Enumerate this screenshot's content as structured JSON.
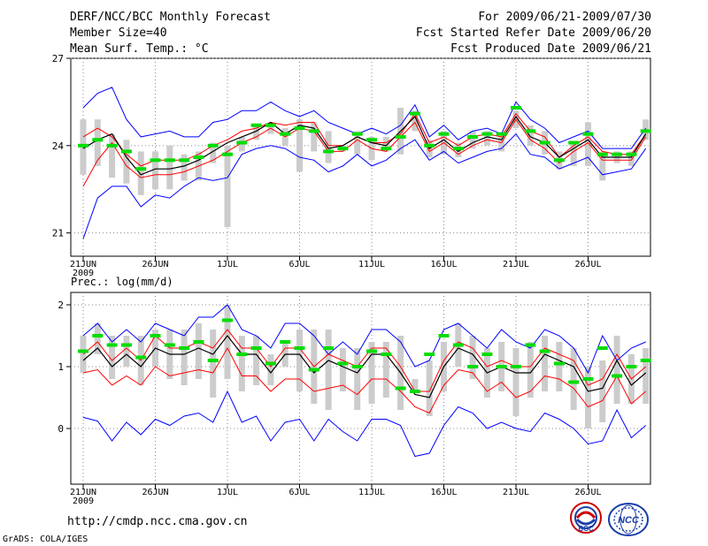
{
  "header": {
    "left1": "DERF/NCC/BCC Monthly Forecast",
    "left2": "Member Size=40",
    "left3": "Mean Surf. Temp.: °C",
    "right1": "For 2009/06/21-2009/07/30",
    "right2": "Fcst Started Refer Date 2009/06/20",
    "right3": "Fcst Produced Date 2009/06/21"
  },
  "footer": {
    "url": "http://cmdp.ncc.cma.gov.cn",
    "grads": "GrADS: COLA/IGES",
    "logo_bcc": "BCC",
    "logo_ncc": "NCC"
  },
  "colors": {
    "envelope": "#0000ff",
    "spread": "#ff0000",
    "mean": "#000000",
    "obs": "#00dd00",
    "box": "#cccccc"
  },
  "chart_data": [
    {
      "type": "line",
      "title": "Mean Surf. Temp.: °C",
      "x_tick_labels": [
        "21JUN",
        "26JUN",
        "1JUL",
        "6JUL",
        "11JUL",
        "16JUL",
        "21JUL",
        "26JUL"
      ],
      "x_year_label": "2009",
      "y_ticks": [
        21,
        24,
        27
      ],
      "ylim": [
        20.2,
        27
      ],
      "days": 40,
      "series": [
        {
          "name": "max",
          "values": [
            25.3,
            25.8,
            26.0,
            24.9,
            24.3,
            24.4,
            24.5,
            24.3,
            24.3,
            24.8,
            24.9,
            25.2,
            25.2,
            25.5,
            25.2,
            25.0,
            25.2,
            24.8,
            24.6,
            24.4,
            24.6,
            24.4,
            24.7,
            25.4,
            24.3,
            24.7,
            24.2,
            24.5,
            24.6,
            24.4,
            25.5,
            24.9,
            24.6,
            24.1,
            24.3,
            24.5,
            23.9,
            23.9,
            23.9,
            24.6
          ]
        },
        {
          "name": "p90",
          "values": [
            24.3,
            24.6,
            24.3,
            23.7,
            23.3,
            23.5,
            23.5,
            23.5,
            23.7,
            24.0,
            24.2,
            24.5,
            24.6,
            24.8,
            24.7,
            24.8,
            24.8,
            24.0,
            24.0,
            24.3,
            24.1,
            24.1,
            24.4,
            25.1,
            24.1,
            24.3,
            24.0,
            24.3,
            24.4,
            24.3,
            25.1,
            24.5,
            24.3,
            23.6,
            24.0,
            24.3,
            23.8,
            23.7,
            23.7,
            24.4
          ]
        },
        {
          "name": "mean",
          "values": [
            23.9,
            24.2,
            24.4,
            23.6,
            23.0,
            23.2,
            23.2,
            23.3,
            23.5,
            23.8,
            24.1,
            24.3,
            24.5,
            24.8,
            24.4,
            24.7,
            24.6,
            23.9,
            24.0,
            24.3,
            24.1,
            24.0,
            24.5,
            25.0,
            23.9,
            24.2,
            23.8,
            24.1,
            24.3,
            24.2,
            25.0,
            24.3,
            24.1,
            23.6,
            23.9,
            24.2,
            23.6,
            23.6,
            23.6,
            24.4
          ]
        },
        {
          "name": "p10",
          "values": [
            22.6,
            23.5,
            24.1,
            23.3,
            22.9,
            23.0,
            23.0,
            23.1,
            23.3,
            23.5,
            23.8,
            24.1,
            24.3,
            24.6,
            24.3,
            24.6,
            24.5,
            23.8,
            23.8,
            24.2,
            23.9,
            23.8,
            24.3,
            24.8,
            23.8,
            24.1,
            23.7,
            24.0,
            24.2,
            24.1,
            24.9,
            24.2,
            23.9,
            23.4,
            23.8,
            24.1,
            23.5,
            23.5,
            23.5,
            24.3
          ]
        },
        {
          "name": "min",
          "values": [
            20.8,
            22.2,
            22.6,
            22.6,
            21.9,
            22.3,
            22.2,
            22.6,
            22.9,
            22.8,
            22.9,
            23.7,
            23.9,
            24.0,
            23.9,
            23.6,
            23.5,
            23.1,
            23.3,
            23.7,
            23.3,
            23.5,
            23.9,
            24.2,
            23.5,
            23.8,
            23.4,
            23.6,
            23.8,
            23.9,
            24.4,
            23.7,
            23.6,
            23.2,
            23.4,
            23.6,
            23.0,
            23.1,
            23.2,
            23.9
          ]
        },
        {
          "name": "box_low",
          "values": [
            23.0,
            23.3,
            22.9,
            22.7,
            22.3,
            22.5,
            22.5,
            22.8,
            22.8,
            23.4,
            21.2,
            23.8,
            24.2,
            24.4,
            24.0,
            23.1,
            23.8,
            23.4,
            23.8,
            23.7,
            23.5,
            23.8,
            23.7,
            24.5,
            23.6,
            23.7,
            23.6,
            23.9,
            24.0,
            23.8,
            24.6,
            24.0,
            23.7,
            23.2,
            23.3,
            23.3,
            22.8,
            23.4,
            23.3,
            24.2
          ]
        },
        {
          "name": "box_high",
          "values": [
            24.9,
            24.9,
            24.4,
            24.2,
            23.8,
            23.8,
            24.0,
            23.7,
            23.8,
            24.1,
            24.0,
            24.3,
            24.7,
            24.8,
            24.6,
            24.9,
            24.8,
            24.5,
            24.0,
            24.5,
            24.3,
            24.3,
            25.3,
            25.2,
            24.2,
            24.5,
            24.1,
            24.5,
            24.5,
            24.3,
            25.2,
            24.7,
            24.5,
            23.8,
            24.1,
            24.8,
            23.8,
            23.8,
            23.8,
            24.9
          ]
        },
        {
          "name": "observed",
          "values": [
            24.0,
            24.2,
            24.0,
            23.8,
            23.2,
            23.5,
            23.5,
            23.5,
            23.6,
            24.0,
            23.7,
            24.1,
            24.7,
            24.7,
            24.4,
            24.6,
            24.5,
            23.8,
            23.9,
            24.4,
            24.2,
            23.9,
            24.3,
            25.1,
            24.0,
            24.4,
            23.9,
            24.3,
            24.4,
            24.4,
            25.3,
            24.5,
            24.1,
            23.5,
            24.1,
            24.4,
            23.7,
            23.7,
            23.7,
            24.5
          ]
        }
      ]
    },
    {
      "type": "line",
      "title": "Prec.: log(mm/d)",
      "x_tick_labels": [
        "21JUN",
        "26JUN",
        "1JUL",
        "6JUL",
        "11JUL",
        "16JUL",
        "21JUL",
        "26JUL"
      ],
      "x_year_label": "2009",
      "y_ticks": [
        0,
        1,
        2
      ],
      "ylim": [
        -0.9,
        2.2
      ],
      "days": 40,
      "series": [
        {
          "name": "max",
          "values": [
            1.5,
            1.7,
            1.4,
            1.6,
            1.4,
            1.7,
            1.6,
            1.5,
            1.8,
            1.8,
            2.0,
            1.6,
            1.5,
            1.3,
            1.7,
            1.7,
            1.5,
            1.2,
            1.4,
            1.2,
            1.6,
            1.6,
            1.4,
            1.0,
            1.1,
            1.6,
            1.7,
            1.5,
            1.3,
            1.6,
            1.4,
            1.3,
            1.6,
            1.5,
            1.3,
            0.9,
            1.5,
            1.1,
            1.3,
            1.4
          ]
        },
        {
          "name": "p90",
          "values": [
            1.2,
            1.4,
            1.1,
            1.3,
            1.1,
            1.5,
            1.3,
            1.3,
            1.4,
            1.3,
            1.6,
            1.3,
            1.3,
            1.0,
            1.3,
            1.3,
            1.0,
            1.2,
            1.1,
            1.0,
            1.3,
            1.3,
            1.0,
            0.6,
            0.6,
            1.1,
            1.4,
            1.3,
            1.0,
            1.1,
            1.0,
            1.0,
            1.3,
            1.2,
            1.1,
            0.7,
            0.8,
            1.2,
            0.8,
            1.0
          ]
        },
        {
          "name": "mean",
          "values": [
            1.1,
            1.3,
            1.0,
            1.2,
            1.0,
            1.3,
            1.2,
            1.2,
            1.3,
            1.2,
            1.5,
            1.2,
            1.2,
            0.9,
            1.2,
            1.2,
            0.9,
            1.1,
            1.0,
            0.9,
            1.2,
            1.2,
            0.9,
            0.55,
            0.5,
            1.0,
            1.3,
            1.2,
            0.9,
            1.0,
            0.9,
            0.9,
            1.2,
            1.1,
            1.0,
            0.6,
            0.65,
            1.1,
            0.7,
            0.9
          ]
        },
        {
          "name": "p10",
          "values": [
            0.9,
            0.95,
            0.7,
            0.85,
            0.7,
            1.0,
            0.85,
            0.9,
            0.95,
            0.9,
            1.3,
            0.85,
            0.85,
            0.6,
            0.8,
            0.8,
            0.6,
            0.65,
            0.7,
            0.55,
            0.8,
            0.8,
            0.6,
            0.35,
            0.25,
            0.7,
            0.95,
            0.9,
            0.6,
            0.75,
            0.5,
            0.6,
            0.85,
            0.8,
            0.65,
            0.35,
            0.45,
            0.85,
            0.4,
            0.6
          ]
        },
        {
          "name": "min",
          "values": [
            0.18,
            0.12,
            -0.2,
            0.1,
            -0.1,
            0.15,
            0.05,
            0.2,
            0.25,
            0.1,
            0.6,
            0.1,
            0.2,
            -0.2,
            0.1,
            0.15,
            -0.2,
            0.15,
            -0.05,
            -0.2,
            0.15,
            0.15,
            0.05,
            -0.45,
            -0.4,
            0.05,
            0.35,
            0.25,
            0.0,
            0.1,
            0.0,
            -0.05,
            0.25,
            0.15,
            0.0,
            -0.25,
            -0.2,
            0.3,
            -0.15,
            0.05
          ]
        },
        {
          "name": "box_low",
          "values": [
            0.9,
            1.2,
            0.8,
            1.0,
            0.7,
            1.0,
            0.8,
            0.7,
            0.8,
            0.5,
            0.8,
            0.6,
            0.7,
            0.7,
            1.0,
            0.6,
            0.4,
            0.3,
            0.6,
            0.3,
            0.4,
            0.5,
            0.3,
            0.6,
            0.2,
            0.6,
            1.0,
            0.8,
            0.5,
            0.6,
            0.2,
            0.5,
            0.6,
            0.6,
            0.3,
            0.0,
            0.1,
            0.4,
            0.4,
            0.4
          ]
        },
        {
          "name": "box_high",
          "values": [
            1.5,
            1.7,
            1.5,
            1.5,
            1.5,
            1.6,
            1.6,
            1.6,
            1.7,
            1.6,
            2.0,
            1.5,
            1.5,
            1.2,
            1.4,
            1.6,
            1.6,
            1.6,
            1.3,
            1.3,
            1.4,
            1.4,
            1.5,
            0.8,
            1.1,
            1.4,
            1.7,
            1.5,
            1.3,
            1.4,
            1.3,
            1.4,
            1.5,
            1.4,
            1.3,
            1.0,
            1.1,
            1.5,
            1.2,
            1.3
          ]
        },
        {
          "name": "observed",
          "values": [
            1.25,
            1.5,
            1.35,
            1.35,
            1.15,
            1.5,
            1.35,
            1.3,
            1.4,
            1.1,
            1.75,
            1.2,
            1.3,
            1.05,
            1.4,
            1.3,
            0.95,
            1.3,
            1.05,
            1.0,
            1.25,
            1.2,
            0.65,
            0.6,
            1.2,
            1.5,
            1.35,
            1.0,
            1.2,
            1.0,
            1.0,
            1.35,
            1.25,
            1.05,
            0.75,
            0.8,
            1.3,
            0.85,
            1.0,
            1.1
          ]
        }
      ]
    }
  ]
}
